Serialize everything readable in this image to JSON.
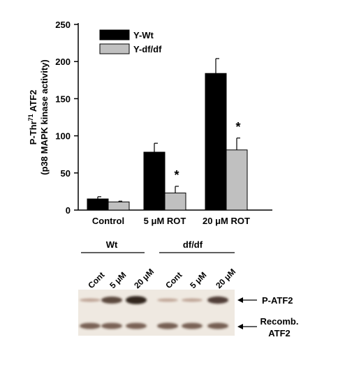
{
  "chart_data": {
    "type": "bar",
    "ylabel_line1": "P-Thr71 ATF2",
    "ylabel_line1_base": "P-Thr",
    "ylabel_line1_sup": "71",
    "ylabel_line1_rest": " ATF2",
    "ylabel_line2": "(p38 MAPK kinase activity)",
    "ylim": [
      0,
      250
    ],
    "yticks": [
      0,
      50,
      100,
      150,
      200,
      250
    ],
    "categories": [
      "Control",
      "5 μM ROT",
      "20 μM ROT"
    ],
    "series": [
      {
        "name": "Y-Wt",
        "color": "#000000",
        "values": [
          15,
          78,
          184
        ],
        "errors": [
          3,
          12,
          20
        ]
      },
      {
        "name": "Y-df/df",
        "color": "#c0c0c0",
        "values": [
          11,
          23,
          81
        ],
        "errors": [
          1,
          9,
          16
        ]
      }
    ],
    "significance": [
      {
        "category": 1,
        "series": 1,
        "label": "*"
      },
      {
        "category": 2,
        "series": 1,
        "label": "*"
      }
    ],
    "legend_position": "top-left"
  },
  "blot": {
    "groups": [
      "Wt",
      "df/df"
    ],
    "lanes": [
      "Cont",
      "5 μM",
      "20 μM",
      "Cont",
      "5 μM",
      "20 μM"
    ],
    "rows": [
      {
        "label_lines": [
          "P-ATF2"
        ],
        "intensities": [
          0.12,
          0.75,
          0.95,
          0.1,
          0.12,
          0.8
        ]
      },
      {
        "label_lines": [
          "Recomb.",
          "ATF2"
        ],
        "intensities": [
          0.6,
          0.6,
          0.6,
          0.62,
          0.6,
          0.62
        ]
      }
    ]
  }
}
